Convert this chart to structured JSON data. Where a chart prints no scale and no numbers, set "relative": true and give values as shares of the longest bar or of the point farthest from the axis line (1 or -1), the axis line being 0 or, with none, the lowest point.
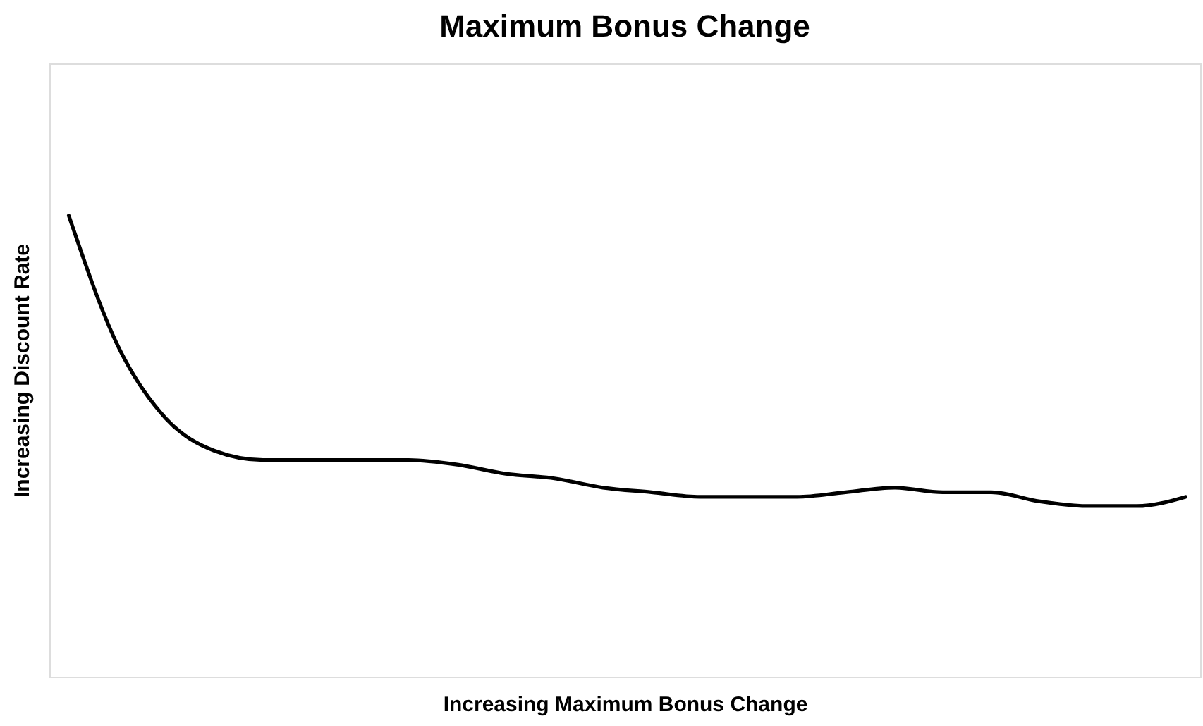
{
  "chart_data": {
    "type": "line",
    "title": "Maximum Bonus Change",
    "xlabel": "Increasing Maximum Bonus Change",
    "ylabel": "Increasing Discount Rate",
    "relative": true,
    "grid": false,
    "categories": [
      null,
      null,
      null,
      null,
      null,
      null,
      null,
      null,
      null,
      null,
      null,
      null,
      null,
      null,
      null,
      null,
      null,
      null,
      null,
      null,
      null,
      null,
      null,
      null
    ],
    "series": [
      {
        "color": "#000000",
        "values": [
          1.0,
          0.72,
          0.56,
          0.49,
          0.47,
          0.47,
          0.47,
          0.47,
          0.46,
          0.44,
          0.43,
          0.41,
          0.4,
          0.39,
          0.39,
          0.39,
          0.4,
          0.41,
          0.4,
          0.4,
          0.38,
          0.37,
          0.37,
          0.39
        ]
      }
    ]
  }
}
